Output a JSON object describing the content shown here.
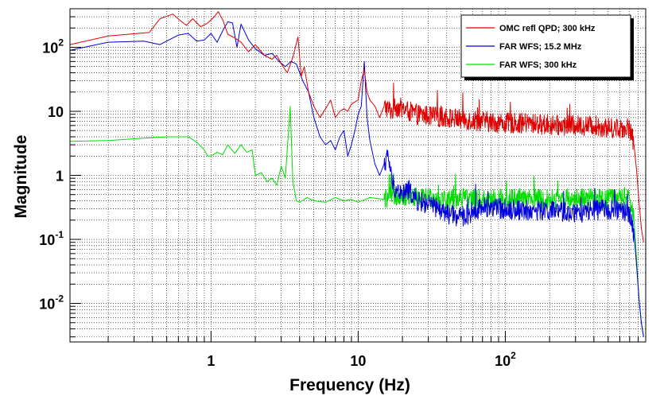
{
  "chart_data": {
    "type": "line",
    "title": "",
    "xlabel": "Frequency (Hz)",
    "ylabel": "Magnitude",
    "x_scale": "log",
    "y_scale": "log",
    "xlim": [
      0.11,
      900
    ],
    "ylim": [
      0.0025,
      400
    ],
    "grid": true,
    "legend_position": "top-right",
    "x_ticks": [
      {
        "value": 1,
        "label": "1"
      },
      {
        "value": 10,
        "label": "10"
      },
      {
        "value": 100,
        "label": "10",
        "sup": "2"
      }
    ],
    "y_ticks": [
      {
        "value": 0.01,
        "label": "10",
        "sup": "-2"
      },
      {
        "value": 0.1,
        "label": "10",
        "sup": "-1"
      },
      {
        "value": 1,
        "label": "1"
      },
      {
        "value": 10,
        "label": "10"
      },
      {
        "value": 100,
        "label": "10",
        "sup": "2"
      }
    ],
    "series": [
      {
        "name": "OMC refl QPD; 300 kHz",
        "color": "#e00000",
        "x": [
          0.11,
          0.2,
          0.38,
          0.45,
          0.55,
          0.62,
          0.68,
          0.75,
          0.85,
          0.95,
          1.05,
          1.12,
          1.2,
          1.3,
          1.45,
          1.6,
          1.8,
          2.0,
          2.3,
          2.6,
          2.8,
          3.0,
          3.3,
          3.6,
          3.9,
          4.1,
          4.3,
          4.6,
          5.0,
          5.5,
          6.0,
          6.5,
          7.0,
          7.5,
          8.0,
          8.5,
          9.0,
          10.0,
          10.5,
          11.0,
          11.5,
          12.0,
          13.0,
          14.0,
          15.0,
          16.0,
          17.0,
          18.0,
          20.0,
          22.0,
          25.0,
          30.0,
          40.0,
          50.0,
          70.0,
          100.0,
          150.0,
          200.0,
          300.0,
          400.0,
          500.0,
          600.0,
          700.0,
          750.0,
          780.0,
          810.0,
          840.0,
          870.0
        ],
        "y": [
          110,
          150,
          170,
          280,
          330,
          260,
          220,
          280,
          210,
          240,
          300,
          360,
          270,
          160,
          140,
          120,
          85,
          110,
          75,
          65,
          75,
          55,
          40,
          70,
          145,
          35,
          50,
          20,
          12,
          8,
          11,
          15,
          8,
          10,
          11,
          10,
          13,
          15,
          30,
          45,
          20,
          15,
          12,
          8,
          12,
          11,
          10,
          12,
          11,
          10,
          9,
          8.5,
          8,
          7.5,
          7,
          6.5,
          6.5,
          6,
          6,
          6,
          5.5,
          5.5,
          5.5,
          3,
          1.2,
          0.4,
          0.15,
          0.09
        ]
      },
      {
        "name": "FAR WFS; 15.2 MHz",
        "color": "#0000dd",
        "x": [
          0.11,
          0.2,
          0.35,
          0.45,
          0.6,
          0.7,
          0.8,
          0.9,
          1.0,
          1.1,
          1.2,
          1.3,
          1.4,
          1.5,
          1.6,
          1.8,
          2.0,
          2.3,
          2.6,
          2.9,
          3.2,
          3.5,
          3.8,
          4.2,
          4.6,
          5.0,
          5.5,
          6.0,
          6.5,
          7.0,
          7.5,
          8.0,
          8.5,
          9.0,
          9.5,
          10.0,
          10.5,
          11.0,
          11.5,
          12.0,
          13.0,
          14.0,
          15.0,
          16.0,
          17.0,
          18.0,
          20.0,
          22.0,
          25.0,
          30.0,
          35.0,
          40.0,
          50.0,
          70.0,
          100.0,
          150.0,
          200.0,
          300.0,
          400.0,
          500.0,
          600.0,
          700.0,
          750.0,
          780.0,
          810.0,
          840.0,
          870.0
        ],
        "y": [
          90,
          120,
          125,
          110,
          155,
          165,
          125,
          130,
          165,
          120,
          180,
          250,
          240,
          100,
          230,
          130,
          95,
          75,
          80,
          60,
          50,
          60,
          55,
          30,
          20,
          8,
          4,
          3,
          3.5,
          2.5,
          4,
          5,
          2,
          3,
          5,
          9,
          12,
          60,
          8,
          3.5,
          1.5,
          1,
          1.5,
          2,
          0.8,
          0.6,
          0.5,
          0.6,
          0.4,
          0.35,
          0.3,
          0.25,
          0.22,
          0.32,
          0.3,
          0.28,
          0.28,
          0.25,
          0.28,
          0.3,
          0.28,
          0.25,
          0.12,
          0.04,
          0.012,
          0.005,
          0.003
        ]
      },
      {
        "name": "FAR WFS; 300 kHz",
        "color": "#00dd00",
        "x": [
          0.11,
          0.2,
          0.35,
          0.5,
          0.62,
          0.7,
          0.8,
          0.9,
          0.95,
          1.0,
          1.1,
          1.2,
          1.3,
          1.45,
          1.6,
          1.75,
          1.9,
          2.0,
          2.2,
          2.4,
          2.6,
          2.8,
          3.0,
          3.2,
          3.45,
          3.6,
          3.8,
          4.0,
          4.5,
          5.0,
          6.0,
          7.0,
          8.0,
          9.0,
          10.0,
          12.0,
          15.0,
          18.0,
          20.0,
          25.0,
          30.0,
          40.0,
          50.0,
          70.0,
          100.0,
          150.0,
          200.0,
          300.0,
          400.0,
          500.0,
          600.0,
          700.0,
          750.0,
          780.0,
          810.0,
          840.0,
          870.0
        ],
        "y": [
          3.4,
          3.5,
          3.8,
          4.0,
          4.0,
          4.0,
          3.3,
          2.5,
          2.0,
          2.0,
          2.3,
          2.1,
          3.0,
          2.2,
          3.0,
          2.3,
          2.5,
          1.0,
          1.1,
          0.8,
          0.9,
          0.7,
          1.4,
          0.9,
          12.0,
          0.8,
          0.4,
          0.38,
          0.45,
          0.4,
          0.38,
          0.45,
          0.4,
          0.42,
          0.38,
          0.45,
          0.42,
          0.5,
          0.48,
          0.45,
          0.45,
          0.42,
          0.45,
          0.42,
          0.44,
          0.43,
          0.42,
          0.44,
          0.43,
          0.42,
          0.44,
          0.42,
          0.2,
          0.05,
          0.012,
          0.005,
          0.003
        ]
      }
    ]
  }
}
